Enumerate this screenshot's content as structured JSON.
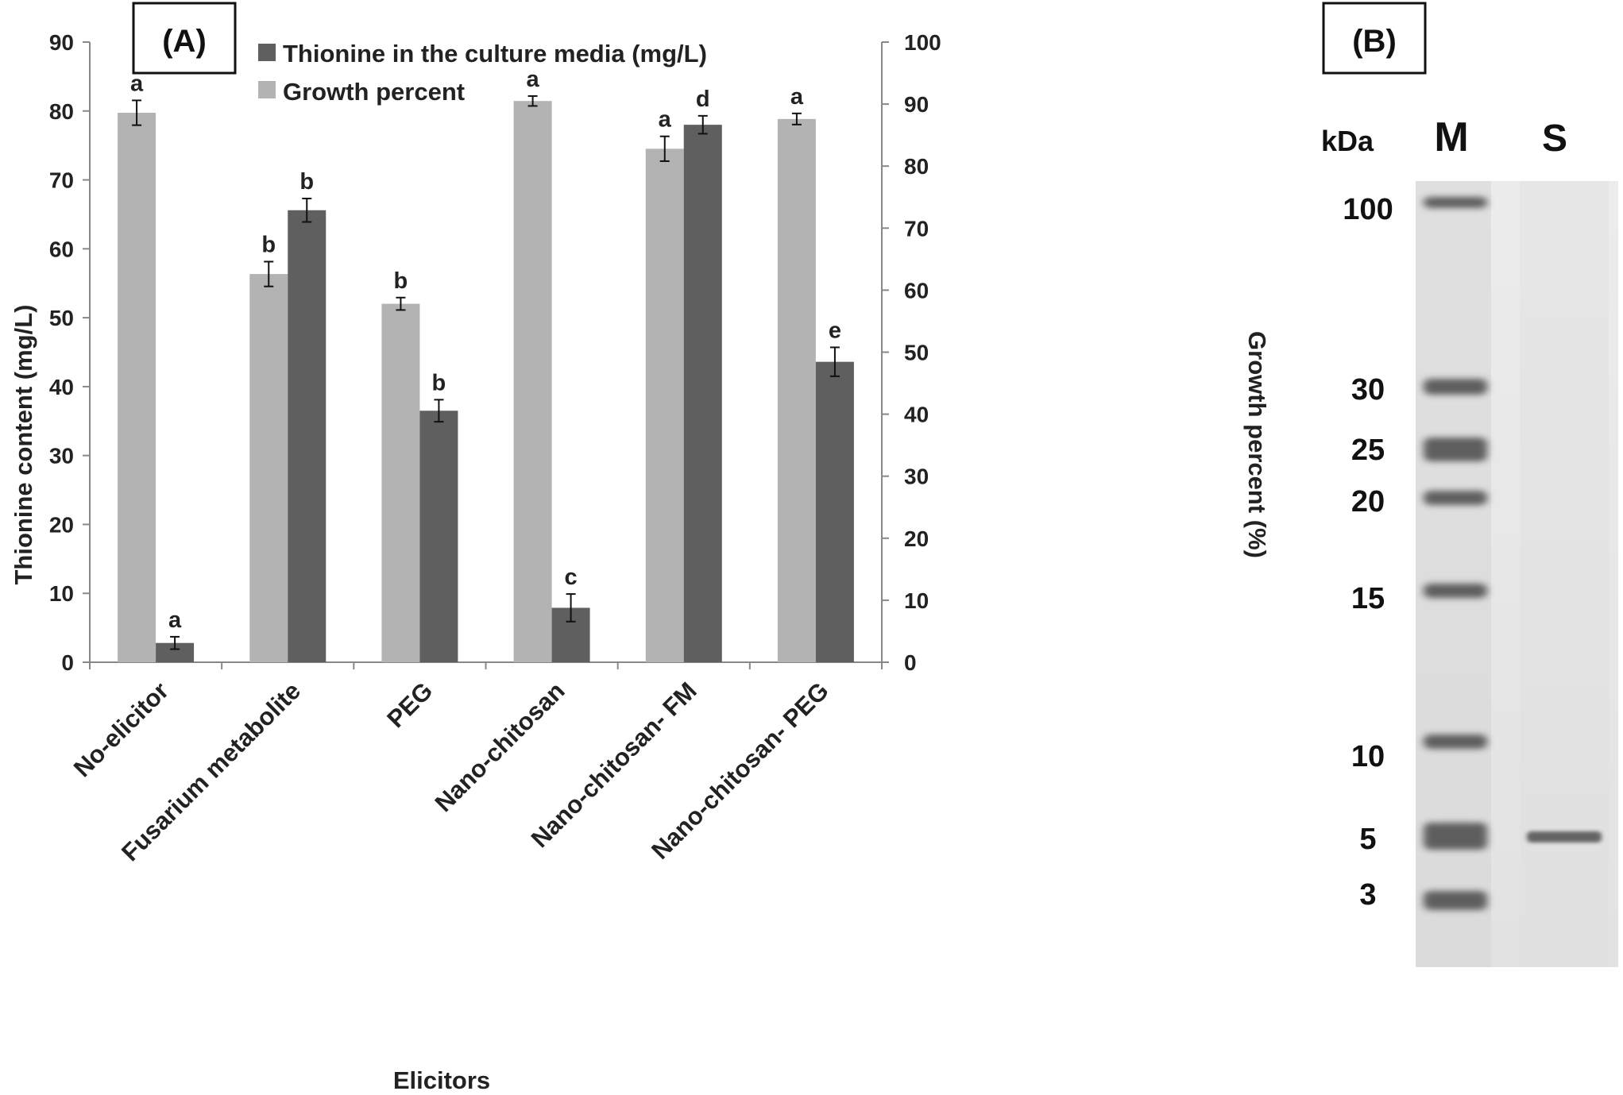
{
  "panel_a_label": "(A)",
  "panel_b_label": "(B)",
  "chart_data": {
    "type": "bar",
    "xlabel": "Elicitors",
    "ylabel": "Thionine content (mg/L)",
    "ylabel_right": "Growth percent (%)",
    "ylim": [
      0,
      90
    ],
    "ylim_right": [
      0,
      100
    ],
    "yticks": [
      "0",
      "10",
      "20",
      "30",
      "40",
      "50",
      "60",
      "70",
      "80",
      "90"
    ],
    "yticks_right": [
      "0",
      "10",
      "20",
      "30",
      "40",
      "50",
      "60",
      "70",
      "80",
      "90",
      "100"
    ],
    "legend_position": "top",
    "categories": [
      "No-elicitor",
      "Fusarium metabolite",
      "PEG",
      "Nano-chitosan",
      "Nano-chitosan- FM",
      "Nano-chitosan- PEG"
    ],
    "series": [
      {
        "name": "Growth percent",
        "axis": "right",
        "color": "#b3b3b3",
        "values": [
          88.6,
          62.6,
          57.8,
          90.5,
          82.8,
          87.6
        ],
        "errors": [
          2.0,
          2.0,
          1.0,
          0.8,
          2.0,
          0.9
        ],
        "labels": [
          "a",
          "b",
          "b",
          "a",
          "a",
          "a"
        ]
      },
      {
        "name": "Thionine in the culture media (mg/L)",
        "axis": "left",
        "color": "#5f5f5f",
        "values": [
          2.8,
          65.6,
          36.5,
          7.9,
          78.0,
          43.6
        ],
        "errors": [
          0.9,
          1.7,
          1.6,
          2.0,
          1.3,
          2.1
        ],
        "labels": [
          "a",
          "b",
          "b",
          "c",
          "d",
          "e"
        ]
      }
    ]
  },
  "gel": {
    "unit_label": "kDa",
    "lane_marker": "M",
    "lane_sample": "S",
    "marker_sizes": [
      "100",
      "30",
      "25",
      "20",
      "15",
      "10",
      "5",
      "3"
    ],
    "sample_band_kda": "5"
  }
}
